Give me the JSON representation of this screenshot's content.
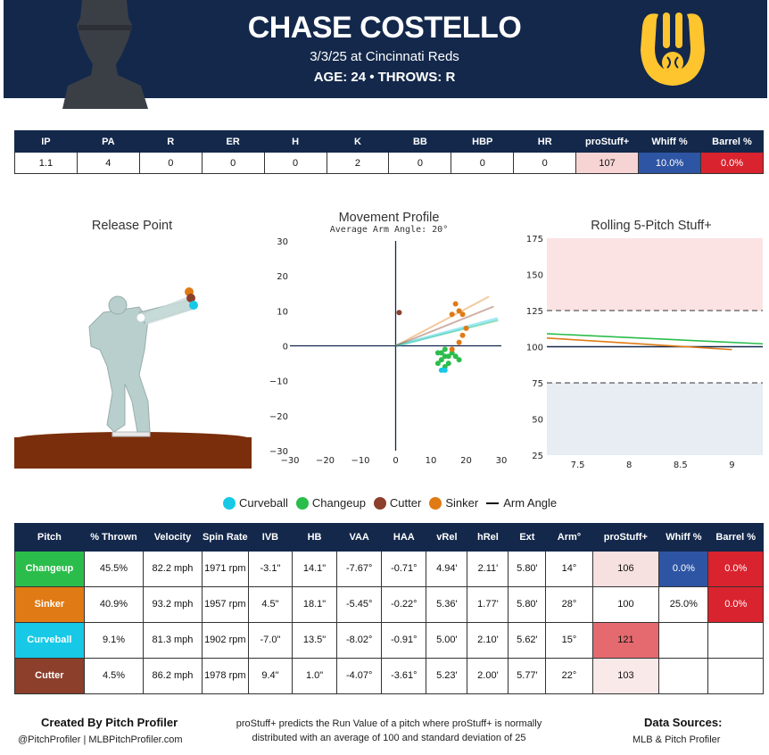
{
  "header": {
    "player_name": "CHASE COSTELLO",
    "game": "3/3/25 at Cincinnati Reds",
    "age_throws": "AGE: 24 • THROWS: R"
  },
  "colors": {
    "navy": "#13284b",
    "changeup": "#2bbd4b",
    "sinker": "#e07a14",
    "curveball": "#17c9e6",
    "cutter": "#8c3f2b",
    "red_high": "#d9232e",
    "blue_low": "#2e55a3"
  },
  "stats_table": {
    "headers": [
      "IP",
      "PA",
      "R",
      "ER",
      "H",
      "K",
      "BB",
      "HBP",
      "HR",
      "proStuff+",
      "Whiff %",
      "Barrel %"
    ],
    "row": [
      "1.1",
      "4",
      "0",
      "0",
      "0",
      "2",
      "0",
      "0",
      "0",
      "107",
      "10.0%",
      "0.0%"
    ],
    "cell_colors": [
      "",
      "",
      "",
      "",
      "",
      "",
      "",
      "",
      "",
      "#f6d4d4",
      "#2e55a3",
      "#d9232e"
    ],
    "cell_text_colors": [
      "",
      "",
      "",
      "",
      "",
      "",
      "",
      "",
      "",
      "#111",
      "#ffffff",
      "#ffffff"
    ]
  },
  "panels": {
    "release_title": "Release Point",
    "movement_title": "Movement Profile",
    "movement_subtitle": "Average Arm Angle: 20°",
    "rolling_title": "Rolling 5-Pitch Stuff+"
  },
  "legend": {
    "items": [
      {
        "label": "Curveball",
        "color": "#17c9e6"
      },
      {
        "label": "Changeup",
        "color": "#2bbd4b"
      },
      {
        "label": "Cutter",
        "color": "#8c3f2b"
      },
      {
        "label": "Sinker",
        "color": "#e07a14"
      }
    ],
    "arm_angle_label": "Arm Angle"
  },
  "pitch_table": {
    "headers": [
      "Pitch",
      "% Thrown",
      "Velocity",
      "Spin Rate",
      "IVB",
      "HB",
      "VAA",
      "HAA",
      "vRel",
      "hRel",
      "Ext",
      "Arm°",
      "proStuff+",
      "Whiff %",
      "Barrel %"
    ],
    "rows": [
      {
        "cells": [
          "Changeup",
          "45.5%",
          "82.2 mph",
          "1971 rpm",
          "-3.1\"",
          "14.1\"",
          "-7.67°",
          "-0.71°",
          "4.94'",
          "2.11'",
          "5.80'",
          "14°",
          "106",
          "0.0%",
          "0.0%"
        ],
        "name_bg": "#2bbd4b",
        "stuff_bg": "#f7e0e0",
        "whiff_bg": "#2e55a3",
        "whiff_fg": "#ffffff",
        "barrel_bg": "#d9232e",
        "barrel_fg": "#ffffff"
      },
      {
        "cells": [
          "Sinker",
          "40.9%",
          "93.2 mph",
          "1957 rpm",
          "4.5\"",
          "18.1\"",
          "-5.45°",
          "-0.22°",
          "5.36'",
          "1.77'",
          "5.80'",
          "28°",
          "100",
          "25.0%",
          "0.0%"
        ],
        "name_bg": "#e07a14",
        "stuff_bg": "#ffffff",
        "whiff_bg": "#ffffff",
        "whiff_fg": "#111",
        "barrel_bg": "#d9232e",
        "barrel_fg": "#ffffff"
      },
      {
        "cells": [
          "Curveball",
          "9.1%",
          "81.3 mph",
          "1902 rpm",
          "-7.0\"",
          "13.5\"",
          "-8.02°",
          "-0.91°",
          "5.00'",
          "2.10'",
          "5.62'",
          "15°",
          "121",
          "",
          ""
        ],
        "name_bg": "#17c9e6",
        "stuff_bg": "#e46a6f",
        "whiff_bg": "#ffffff",
        "whiff_fg": "#111",
        "barrel_bg": "#ffffff",
        "barrel_fg": "#111"
      },
      {
        "cells": [
          "Cutter",
          "4.5%",
          "86.2 mph",
          "1978 rpm",
          "9.4\"",
          "1.0\"",
          "-4.07°",
          "-3.61°",
          "5.23'",
          "2.00'",
          "5.77'",
          "22°",
          "103",
          "",
          ""
        ],
        "name_bg": "#8c3f2b",
        "stuff_bg": "#fae9e9",
        "whiff_bg": "#ffffff",
        "whiff_fg": "#111",
        "barrel_bg": "#ffffff",
        "barrel_fg": "#111"
      }
    ]
  },
  "footer": {
    "created_by": "Created By Pitch Profiler",
    "handles": "@PitchProfiler | MLBPitchProfiler.com",
    "note_line1": "proStuff+ predicts the Run Value of a pitch where proStuff+ is normally",
    "note_line2": "distributed with an average of 100 and standard deviation of 25",
    "sources_title": "Data Sources:",
    "sources": "MLB & Pitch Profiler"
  },
  "chart_data": [
    {
      "type": "scatter",
      "title": "Movement Profile",
      "subtitle": "Average Arm Angle: 20°",
      "xlim": [
        -30,
        30
      ],
      "ylim": [
        -30,
        30
      ],
      "xticks": [
        -30,
        -20,
        -10,
        0,
        10,
        20,
        30
      ],
      "yticks": [
        30,
        20,
        10,
        0,
        -10,
        -20,
        -30
      ],
      "series": [
        {
          "name": "Changeup",
          "color": "#2bbd4b",
          "points": [
            [
              12,
              -2
            ],
            [
              14,
              -1
            ],
            [
              13,
              -4
            ],
            [
              15,
              -3
            ],
            [
              16,
              -2
            ],
            [
              12,
              -5
            ],
            [
              14,
              -6
            ],
            [
              17,
              -3
            ],
            [
              18,
              -4
            ],
            [
              14,
              -3
            ],
            [
              13,
              -2
            ],
            [
              15,
              -5
            ]
          ]
        },
        {
          "name": "Sinker",
          "color": "#e07a14",
          "points": [
            [
              17,
              12
            ],
            [
              19,
              9
            ],
            [
              16,
              9
            ],
            [
              18,
              10
            ],
            [
              20,
              5
            ],
            [
              18,
              1
            ],
            [
              19,
              3
            ],
            [
              16,
              -1
            ]
          ]
        },
        {
          "name": "Curveball",
          "color": "#17c9e6",
          "points": [
            [
              13,
              -7
            ],
            [
              14,
              -7
            ]
          ]
        },
        {
          "name": "Cutter",
          "color": "#8c3f2b",
          "points": [
            [
              1,
              9.5
            ]
          ]
        }
      ],
      "arm_angle_lines": [
        {
          "name": "Changeup",
          "color": "#2bbd4b",
          "angle": 14
        },
        {
          "name": "Sinker",
          "color": "#e07a14",
          "angle": 28
        },
        {
          "name": "Curveball",
          "color": "#17c9e6",
          "angle": 15
        },
        {
          "name": "Cutter",
          "color": "#8c3f2b",
          "angle": 22
        }
      ]
    },
    {
      "type": "line",
      "title": "Rolling 5-Pitch Stuff+",
      "xlim": [
        7.2,
        9.3
      ],
      "ylim": [
        25,
        175
      ],
      "xticks": [
        "7.5",
        "8",
        "8.5",
        "9"
      ],
      "yticks": [
        175,
        150,
        125,
        100,
        75,
        50,
        25
      ],
      "series": [
        {
          "name": "Changeup",
          "color": "#2bbd4b",
          "x": [
            7.2,
            9.3
          ],
          "y": [
            109,
            102
          ]
        },
        {
          "name": "Sinker",
          "color": "#e07a14",
          "x": [
            7.2,
            9.0
          ],
          "y": [
            106,
            98
          ]
        }
      ]
    }
  ]
}
